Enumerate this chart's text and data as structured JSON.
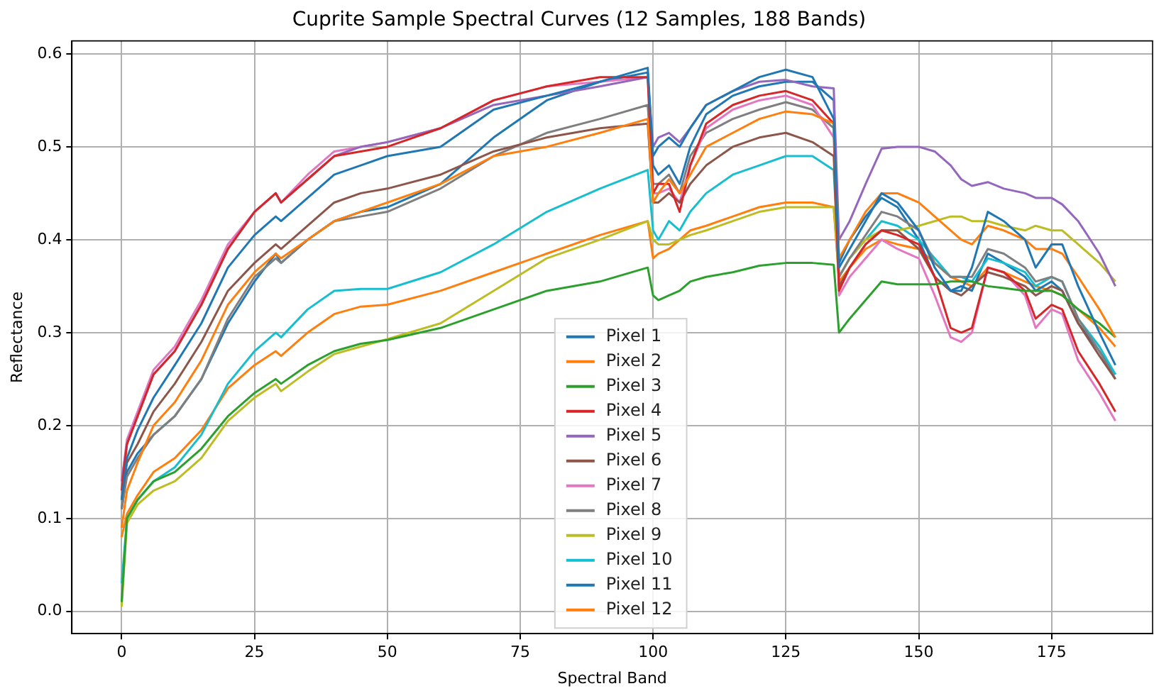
{
  "chart_data": {
    "type": "line",
    "title": "Cuprite Sample Spectral Curves (12 Samples, 188 Bands)",
    "xlabel": "Spectral Band",
    "ylabel": "Reflectance",
    "x": [
      0,
      1,
      3,
      6,
      10,
      15,
      20,
      25,
      29,
      30,
      35,
      40,
      45,
      50,
      60,
      70,
      80,
      90,
      99,
      100,
      101,
      103,
      105,
      107,
      110,
      115,
      120,
      125,
      130,
      134,
      135,
      137,
      140,
      143,
      146,
      150,
      153,
      156,
      158,
      160,
      163,
      166,
      170,
      172,
      175,
      177,
      180,
      184,
      187
    ],
    "xlim": [
      -9.35,
      194
    ],
    "ylim": [
      -0.024,
      0.614
    ],
    "xticks": [
      0,
      25,
      50,
      75,
      100,
      125,
      150,
      175
    ],
    "yticks": [
      {
        "value": 0,
        "label": "0.0"
      },
      {
        "value": 0.1,
        "label": "0.1"
      },
      {
        "value": 0.2,
        "label": "0.2"
      },
      {
        "value": 0.3,
        "label": "0.3"
      },
      {
        "value": 0.4,
        "label": "0.4"
      },
      {
        "value": 0.5,
        "label": "0.5"
      },
      {
        "value": 0.6,
        "label": "0.6"
      }
    ],
    "grid": true,
    "legend": "bottom",
    "line_style": "solid",
    "series": [
      {
        "name": "Pixel 1",
        "color": "#1f77b4",
        "values": [
          0.12,
          0.165,
          0.195,
          0.23,
          0.265,
          0.31,
          0.37,
          0.405,
          0.425,
          0.42,
          0.445,
          0.47,
          0.48,
          0.49,
          0.5,
          0.54,
          0.555,
          0.57,
          0.585,
          0.49,
          0.5,
          0.51,
          0.5,
          0.52,
          0.545,
          0.56,
          0.575,
          0.583,
          0.575,
          0.53,
          0.37,
          0.39,
          0.42,
          0.45,
          0.44,
          0.41,
          0.37,
          0.345,
          0.345,
          0.37,
          0.43,
          0.42,
          0.4,
          0.37,
          0.395,
          0.395,
          0.35,
          0.3,
          0.265
        ]
      },
      {
        "name": "Pixel 2",
        "color": "#ff7f0e",
        "values": [
          0.09,
          0.13,
          0.16,
          0.2,
          0.225,
          0.27,
          0.33,
          0.365,
          0.385,
          0.38,
          0.4,
          0.42,
          0.43,
          0.44,
          0.46,
          0.49,
          0.5,
          0.515,
          0.53,
          0.44,
          0.45,
          0.465,
          0.45,
          0.47,
          0.5,
          0.515,
          0.53,
          0.538,
          0.535,
          0.525,
          0.38,
          0.4,
          0.43,
          0.45,
          0.45,
          0.44,
          0.425,
          0.41,
          0.4,
          0.395,
          0.415,
          0.41,
          0.4,
          0.39,
          0.39,
          0.385,
          0.36,
          0.325,
          0.295
        ]
      },
      {
        "name": "Pixel 3",
        "color": "#2ca02c",
        "values": [
          0.01,
          0.1,
          0.12,
          0.14,
          0.15,
          0.175,
          0.21,
          0.235,
          0.25,
          0.245,
          0.265,
          0.28,
          0.288,
          0.292,
          0.305,
          0.325,
          0.345,
          0.355,
          0.37,
          0.34,
          0.335,
          0.34,
          0.345,
          0.355,
          0.36,
          0.365,
          0.372,
          0.375,
          0.375,
          0.373,
          0.3,
          0.315,
          0.335,
          0.355,
          0.352,
          0.352,
          0.352,
          0.355,
          0.355,
          0.355,
          0.35,
          0.348,
          0.345,
          0.345,
          0.345,
          0.34,
          0.325,
          0.31,
          0.295
        ]
      },
      {
        "name": "Pixel 4",
        "color": "#d62728",
        "values": [
          0.13,
          0.18,
          0.21,
          0.255,
          0.28,
          0.33,
          0.39,
          0.43,
          0.45,
          0.44,
          0.465,
          0.49,
          0.495,
          0.5,
          0.52,
          0.55,
          0.565,
          0.575,
          0.575,
          0.45,
          0.46,
          0.46,
          0.43,
          0.48,
          0.525,
          0.545,
          0.555,
          0.56,
          0.55,
          0.525,
          0.345,
          0.37,
          0.395,
          0.41,
          0.405,
          0.395,
          0.36,
          0.305,
          0.3,
          0.305,
          0.37,
          0.365,
          0.345,
          0.315,
          0.33,
          0.325,
          0.28,
          0.245,
          0.215
        ]
      },
      {
        "name": "Pixel 5",
        "color": "#9467bd",
        "values": [
          0.14,
          0.18,
          0.21,
          0.255,
          0.28,
          0.33,
          0.39,
          0.43,
          0.45,
          0.44,
          0.465,
          0.49,
          0.5,
          0.505,
          0.52,
          0.545,
          0.555,
          0.565,
          0.575,
          0.5,
          0.51,
          0.515,
          0.505,
          0.52,
          0.545,
          0.56,
          0.57,
          0.572,
          0.565,
          0.563,
          0.4,
          0.42,
          0.46,
          0.498,
          0.5,
          0.5,
          0.495,
          0.48,
          0.465,
          0.458,
          0.462,
          0.455,
          0.45,
          0.445,
          0.445,
          0.438,
          0.42,
          0.385,
          0.35
        ]
      },
      {
        "name": "Pixel 6",
        "color": "#8c564b",
        "values": [
          0.12,
          0.16,
          0.18,
          0.215,
          0.245,
          0.29,
          0.345,
          0.375,
          0.395,
          0.39,
          0.415,
          0.44,
          0.45,
          0.455,
          0.47,
          0.495,
          0.51,
          0.52,
          0.525,
          0.44,
          0.44,
          0.45,
          0.44,
          0.46,
          0.48,
          0.5,
          0.51,
          0.515,
          0.505,
          0.49,
          0.35,
          0.37,
          0.395,
          0.41,
          0.41,
          0.39,
          0.36,
          0.345,
          0.34,
          0.35,
          0.365,
          0.36,
          0.35,
          0.34,
          0.35,
          0.345,
          0.31,
          0.275,
          0.25
        ]
      },
      {
        "name": "Pixel 7",
        "color": "#e377c2",
        "values": [
          0.14,
          0.185,
          0.215,
          0.26,
          0.285,
          0.335,
          0.395,
          0.43,
          0.45,
          0.44,
          0.47,
          0.495,
          0.5,
          0.505,
          0.52,
          0.55,
          0.565,
          0.57,
          0.575,
          0.45,
          0.45,
          0.455,
          0.44,
          0.48,
          0.52,
          0.54,
          0.55,
          0.555,
          0.545,
          0.51,
          0.34,
          0.36,
          0.38,
          0.4,
          0.39,
          0.38,
          0.34,
          0.295,
          0.29,
          0.3,
          0.37,
          0.365,
          0.34,
          0.305,
          0.325,
          0.32,
          0.27,
          0.235,
          0.205
        ]
      },
      {
        "name": "Pixel 8",
        "color": "#7f7f7f",
        "values": [
          0.11,
          0.145,
          0.165,
          0.19,
          0.21,
          0.25,
          0.315,
          0.36,
          0.38,
          0.375,
          0.4,
          0.42,
          0.425,
          0.43,
          0.455,
          0.49,
          0.515,
          0.53,
          0.545,
          0.46,
          0.46,
          0.47,
          0.45,
          0.49,
          0.515,
          0.53,
          0.54,
          0.548,
          0.54,
          0.52,
          0.36,
          0.38,
          0.405,
          0.43,
          0.425,
          0.41,
          0.375,
          0.36,
          0.36,
          0.36,
          0.39,
          0.385,
          0.37,
          0.355,
          0.36,
          0.355,
          0.315,
          0.28,
          0.25
        ]
      },
      {
        "name": "Pixel 9",
        "color": "#bcbd22",
        "values": [
          0.005,
          0.095,
          0.115,
          0.13,
          0.14,
          0.165,
          0.205,
          0.23,
          0.245,
          0.237,
          0.258,
          0.277,
          0.285,
          0.293,
          0.31,
          0.345,
          0.38,
          0.4,
          0.42,
          0.4,
          0.395,
          0.395,
          0.4,
          0.405,
          0.41,
          0.42,
          0.43,
          0.435,
          0.435,
          0.435,
          0.36,
          0.38,
          0.4,
          0.41,
          0.41,
          0.415,
          0.42,
          0.425,
          0.425,
          0.42,
          0.42,
          0.415,
          0.41,
          0.415,
          0.41,
          0.41,
          0.395,
          0.375,
          0.355
        ]
      },
      {
        "name": "Pixel 10",
        "color": "#17becf",
        "values": [
          0.03,
          0.1,
          0.12,
          0.14,
          0.155,
          0.19,
          0.245,
          0.28,
          0.3,
          0.295,
          0.325,
          0.345,
          0.347,
          0.347,
          0.365,
          0.395,
          0.43,
          0.455,
          0.475,
          0.41,
          0.4,
          0.42,
          0.41,
          0.43,
          0.45,
          0.47,
          0.48,
          0.49,
          0.49,
          0.475,
          0.36,
          0.38,
          0.4,
          0.42,
          0.415,
          0.4,
          0.38,
          0.36,
          0.36,
          0.355,
          0.38,
          0.375,
          0.365,
          0.35,
          0.36,
          0.355,
          0.315,
          0.285,
          0.255
        ]
      },
      {
        "name": "Pixel 11",
        "color": "#1f77b4",
        "values": [
          0.11,
          0.15,
          0.17,
          0.19,
          0.21,
          0.25,
          0.31,
          0.355,
          0.385,
          0.375,
          0.4,
          0.42,
          0.43,
          0.435,
          0.46,
          0.51,
          0.55,
          0.57,
          0.58,
          0.48,
          0.47,
          0.48,
          0.46,
          0.5,
          0.535,
          0.555,
          0.565,
          0.57,
          0.57,
          0.55,
          0.375,
          0.4,
          0.425,
          0.445,
          0.435,
          0.4,
          0.36,
          0.345,
          0.35,
          0.345,
          0.385,
          0.375,
          0.36,
          0.345,
          0.355,
          0.345,
          0.31,
          0.28,
          0.255
        ]
      },
      {
        "name": "Pixel 12",
        "color": "#ff7f0e",
        "values": [
          0.08,
          0.105,
          0.125,
          0.15,
          0.165,
          0.195,
          0.24,
          0.265,
          0.28,
          0.275,
          0.3,
          0.32,
          0.328,
          0.33,
          0.345,
          0.365,
          0.385,
          0.405,
          0.42,
          0.38,
          0.385,
          0.39,
          0.4,
          0.41,
          0.415,
          0.425,
          0.435,
          0.44,
          0.44,
          0.435,
          0.355,
          0.37,
          0.39,
          0.4,
          0.395,
          0.39,
          0.375,
          0.36,
          0.355,
          0.35,
          0.37,
          0.365,
          0.355,
          0.35,
          0.345,
          0.34,
          0.325,
          0.305,
          0.285
        ]
      }
    ]
  }
}
